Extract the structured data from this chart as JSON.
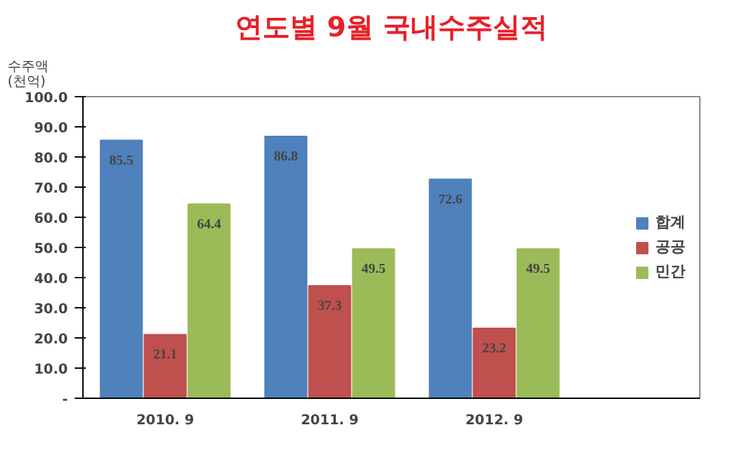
{
  "chart_data": {
    "type": "bar",
    "title": "연도별 9월 국내수주실적",
    "ylabel": "수주액\n(천억)",
    "categories": [
      "2010. 9",
      "2011. 9",
      "2012. 9"
    ],
    "series": [
      {
        "name": "합계",
        "color": "#4f81bd",
        "values": [
          85.5,
          86.8,
          72.6
        ]
      },
      {
        "name": "공공",
        "color": "#c0504d",
        "values": [
          21.1,
          37.3,
          23.2
        ]
      },
      {
        "name": "민간",
        "color": "#9bbb59",
        "values": [
          64.4,
          49.5,
          49.5
        ]
      }
    ],
    "ylim": [
      0,
      100
    ],
    "yticks": [
      {
        "value": 0,
        "label": "-"
      },
      {
        "value": 10,
        "label": "10.0"
      },
      {
        "value": 20,
        "label": "20.0"
      },
      {
        "value": 30,
        "label": "30.0"
      },
      {
        "value": 40,
        "label": "40.0"
      },
      {
        "value": 50,
        "label": "50.0"
      },
      {
        "value": 60,
        "label": "60.0"
      },
      {
        "value": 70,
        "label": "70.0"
      },
      {
        "value": 80,
        "label": "80.0"
      },
      {
        "value": 90,
        "label": "90.0"
      },
      {
        "value": 100,
        "label": "100.0"
      }
    ],
    "data_labels": true,
    "legend": "right",
    "grid": false
  }
}
